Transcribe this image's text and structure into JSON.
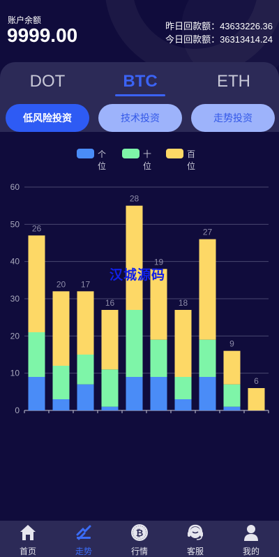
{
  "account": {
    "balance_label": "账户余额",
    "balance_value": "9999.00",
    "yesterday": "昨日回款额：43633226.36",
    "today": "今日回款额：36313414.24"
  },
  "tabs": [
    {
      "label": "DOT",
      "active": false
    },
    {
      "label": "BTC",
      "active": true
    },
    {
      "label": "ETH",
      "active": false
    }
  ],
  "pills": [
    {
      "label": "低风险投资",
      "active": true
    },
    {
      "label": "技术投资",
      "active": false
    },
    {
      "label": "走势投资",
      "active": false
    }
  ],
  "watermark": "汉城源码",
  "chart_data": {
    "type": "bar",
    "stacked": true,
    "ylim": [
      0,
      60
    ],
    "yticks": [
      0,
      10,
      20,
      30,
      40,
      50,
      60
    ],
    "grid": true,
    "legend_position": "top-center",
    "series": [
      {
        "name": "个位",
        "color": "#4a8cf7",
        "values": [
          9,
          3,
          7,
          1,
          9,
          9,
          3,
          9,
          1,
          0
        ]
      },
      {
        "name": "十位",
        "color": "#7ef5a8",
        "values": [
          12,
          9,
          8,
          10,
          18,
          10,
          6,
          10,
          6,
          0
        ]
      },
      {
        "name": "百位",
        "color": "#fdd866",
        "values": [
          26,
          20,
          17,
          16,
          28,
          19,
          18,
          27,
          9,
          6
        ]
      }
    ]
  },
  "nav": [
    {
      "label": "首页",
      "icon": "home-icon",
      "active": false
    },
    {
      "label": "走势",
      "icon": "trend-icon",
      "active": true
    },
    {
      "label": "行情",
      "icon": "bitcoin-coin-icon",
      "active": false
    },
    {
      "label": "客服",
      "icon": "headset-icon",
      "active": false
    },
    {
      "label": "我的",
      "icon": "user-icon",
      "active": false
    }
  ],
  "colors": {
    "background": "#100c3c",
    "panel": "#2c2a57",
    "accent": "#3b63f5",
    "pill_inactive": "#9db3fb"
  }
}
